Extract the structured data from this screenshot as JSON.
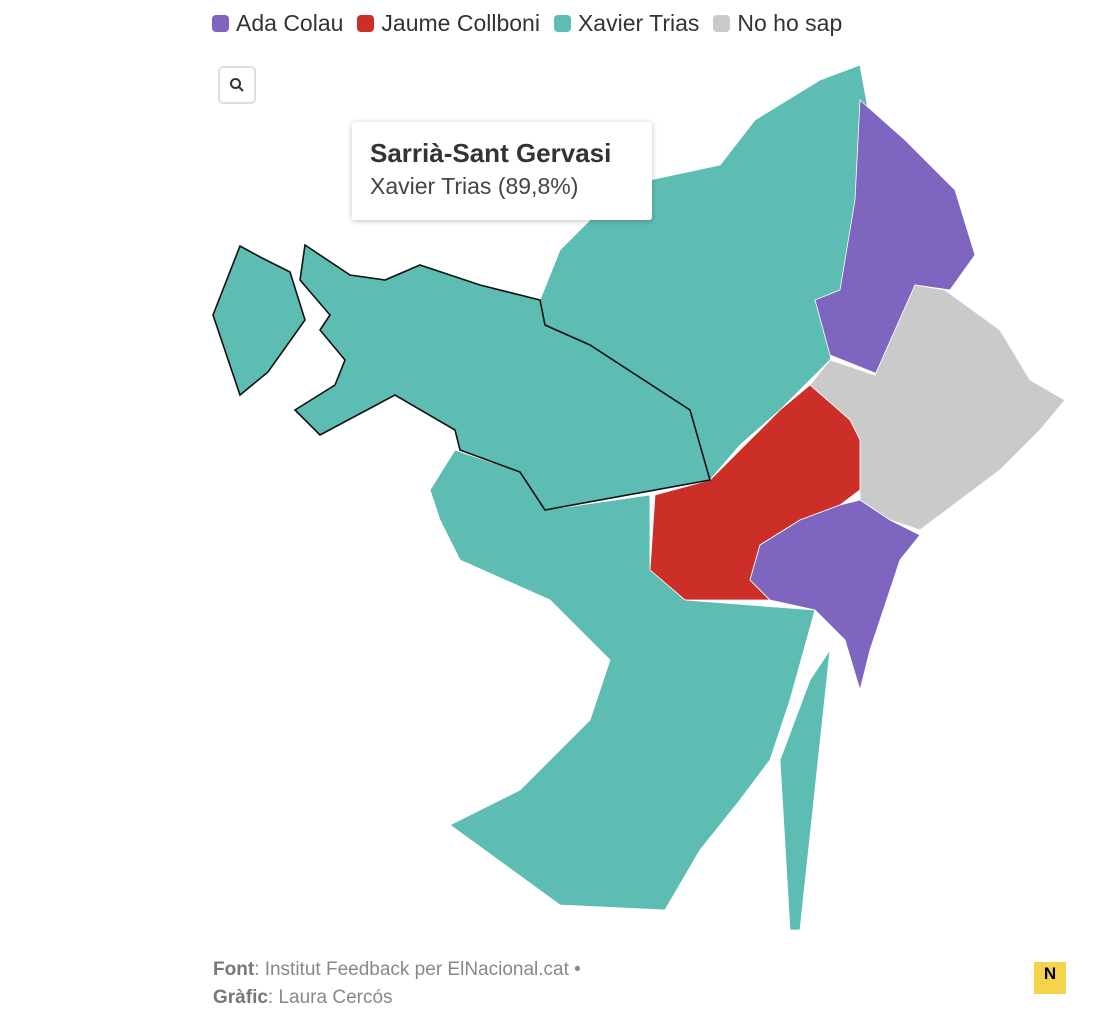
{
  "legend": [
    {
      "label": "Ada Colau",
      "color": "#7e66c0"
    },
    {
      "label": "Jaume Collboni",
      "color": "#cc2f27"
    },
    {
      "label": "Xavier Trias",
      "color": "#5dbdb2"
    },
    {
      "label": "No ho sap",
      "color": "#cbcacb"
    }
  ],
  "tooltip": {
    "title": "Sarrià-Sant Gervasi",
    "text": "Xavier Trias (89,8%)"
  },
  "footer": {
    "source_label": "Font",
    "source": ": Institut Feedback per ElNacional.cat •",
    "credit_label": "Gràfic",
    "credit": ": Laura Cercós"
  },
  "logo": "N"
}
